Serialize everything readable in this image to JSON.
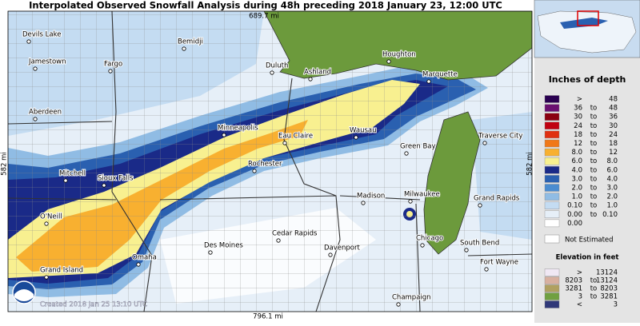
{
  "header": {
    "title": "Interpolated Observed Snowfall Analysis during 48h preceding 2018 January 23, 12:00 UTC"
  },
  "map": {
    "top_distance": "689.7 mi",
    "bottom_distance": "796.1 mi",
    "left_distance": "582 mi",
    "right_distance": "582 mi",
    "created": "Created 2018 Jan 25 13:10 UTC",
    "cities": [
      "Devils Lake",
      "Bemidji",
      "Jamestown",
      "Fargo",
      "Duluth",
      "Houghton",
      "Ashland",
      "Marquette",
      "Aberdeen",
      "Minneapolis",
      "Eau Claire",
      "Wausau",
      "Traverse City",
      "Green Bay",
      "Rochester",
      "Mitchell",
      "Sioux Falls",
      "Madison",
      "Milwaukee",
      "Grand Rapids",
      "O'Neill",
      "Cedar Rapids",
      "Chicago",
      "South Bend",
      "Des Moines",
      "Davenport",
      "Omaha",
      "Fort Wayne",
      "Grand Island",
      "Champaign"
    ]
  },
  "legend": {
    "depth_title": "Inches of depth",
    "depth_rows": [
      {
        "low": ">",
        "high": "48",
        "color": "#2a0050"
      },
      {
        "low": "36",
        "to": "to",
        "high": "48",
        "color": "#6a1070"
      },
      {
        "low": "30",
        "to": "to",
        "high": "36",
        "color": "#8a0010"
      },
      {
        "low": "24",
        "to": "to",
        "high": "30",
        "color": "#c00010"
      },
      {
        "low": "18",
        "to": "to",
        "high": "24",
        "color": "#e03010"
      },
      {
        "low": "12",
        "to": "to",
        "high": "18",
        "color": "#f07818"
      },
      {
        "low": "8.0",
        "to": "to",
        "high": "12",
        "color": "#f8b030"
      },
      {
        "low": "6.0",
        "to": "to",
        "high": "8.0",
        "color": "#f8f090"
      },
      {
        "low": "4.0",
        "to": "to",
        "high": "6.0",
        "color": "#1a2a88"
      },
      {
        "low": "3.0",
        "to": "to",
        "high": "4.0",
        "color": "#2a60b0"
      },
      {
        "low": "2.0",
        "to": "to",
        "high": "3.0",
        "color": "#4a8cd0"
      },
      {
        "low": "1.0",
        "to": "to",
        "high": "2.0",
        "color": "#90bce4"
      },
      {
        "low": "0.10",
        "to": "to",
        "high": "1.0",
        "color": "#c4dcf2"
      },
      {
        "low": "0.00",
        "to": "to",
        "high": "0.10",
        "color": "#e6eff8"
      },
      {
        "low": "0.00",
        "color": "#ffffff"
      }
    ],
    "not_estimated": "Not Estimated",
    "elevation_title": "Elevation in feet",
    "elevation_rows": [
      {
        "low": ">",
        "high": "13124",
        "color": "#f0e8f4"
      },
      {
        "low": "8203",
        "to": "to",
        "high": "13124",
        "color": "#d8b0a0"
      },
      {
        "low": "3281",
        "to": "to",
        "high": "8203",
        "color": "#b0a060"
      },
      {
        "low": "3",
        "to": "to",
        "high": "3281",
        "color": "#70a040"
      },
      {
        "low": "<",
        "high": "3",
        "color": "#303878"
      }
    ]
  }
}
